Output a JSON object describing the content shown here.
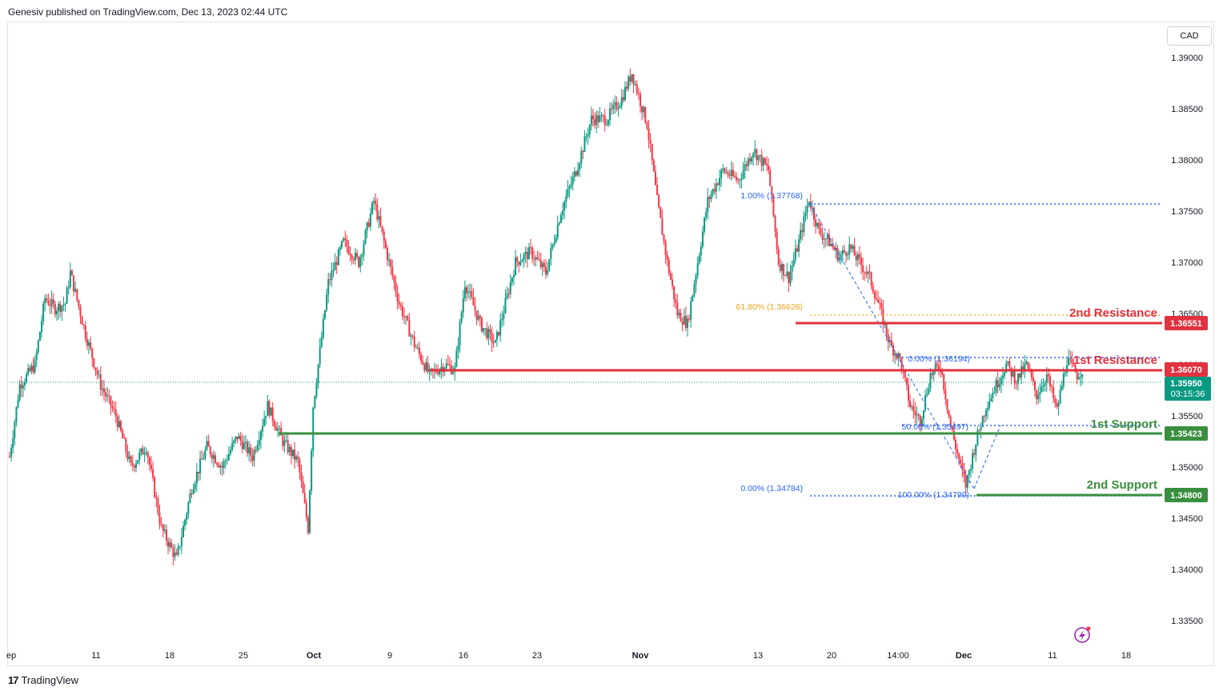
{
  "header": {
    "text": "Genesiv published on TradingView.com, Dec 13, 2023 02:44 UTC"
  },
  "currency_button": "CAD",
  "footer": {
    "logo": "17",
    "brand": "TradingView"
  },
  "colors": {
    "up": "#089981",
    "down": "#f23645",
    "resistance": "#e0323f",
    "support": "#3a8f3f",
    "fib": "#2962ff",
    "fib618": "#f0a21e"
  },
  "chart_data": {
    "type": "candlestick",
    "symbol_quote": "CAD",
    "y_ticks": [
      "1.39000",
      "1.38500",
      "1.38000",
      "1.37500",
      "1.37000",
      "1.36500",
      "1.36000",
      "1.35500",
      "1.35000",
      "1.34500",
      "1.34000",
      "1.33500"
    ],
    "ylim": [
      1.3325,
      1.3925
    ],
    "x_ticks": [
      "ep",
      "11",
      "18",
      "25",
      "Oct",
      "9",
      "16",
      "23",
      "Nov",
      "13",
      "20",
      "14:00",
      "Dec",
      "11",
      "18"
    ],
    "price_path": [
      [
        0,
        1.351
      ],
      [
        2,
        1.358
      ],
      [
        5,
        1.36
      ],
      [
        7,
        1.3665
      ],
      [
        9,
        1.3655
      ],
      [
        11,
        1.366
      ],
      [
        12,
        1.369
      ],
      [
        15,
        1.363
      ],
      [
        18,
        1.358
      ],
      [
        21,
        1.355
      ],
      [
        24,
        1.35
      ],
      [
        27,
        1.352
      ],
      [
        30,
        1.344
      ],
      [
        33,
        1.341
      ],
      [
        36,
        1.348
      ],
      [
        39,
        1.352
      ],
      [
        42,
        1.35
      ],
      [
        45,
        1.353
      ],
      [
        48,
        1.351
      ],
      [
        51,
        1.356
      ],
      [
        54,
        1.3525
      ],
      [
        57,
        1.3505
      ],
      [
        59,
        1.344
      ],
      [
        60,
        1.356
      ],
      [
        63,
        1.368
      ],
      [
        66,
        1.372
      ],
      [
        69,
        1.37
      ],
      [
        72,
        1.376
      ],
      [
        74,
        1.372
      ],
      [
        77,
        1.366
      ],
      [
        80,
        1.362
      ],
      [
        83,
        1.359
      ],
      [
        86,
        1.36
      ],
      [
        88,
        1.3595
      ],
      [
        90,
        1.368
      ],
      [
        93,
        1.364
      ],
      [
        96,
        1.362
      ],
      [
        98,
        1.366
      ],
      [
        100,
        1.37
      ],
      [
        103,
        1.371
      ],
      [
        106,
        1.369
      ],
      [
        109,
        1.375
      ],
      [
        112,
        1.379
      ],
      [
        115,
        1.384
      ],
      [
        118,
        1.384
      ],
      [
        121,
        1.386
      ],
      [
        123,
        1.3885
      ],
      [
        126,
        1.3835
      ],
      [
        128,
        1.376
      ],
      [
        130,
        1.37
      ],
      [
        132,
        1.365
      ],
      [
        134,
        1.364
      ],
      [
        136,
        1.37
      ],
      [
        138,
        1.376
      ],
      [
        141,
        1.379
      ],
      [
        144,
        1.378
      ],
      [
        147,
        1.381
      ],
      [
        150,
        1.379
      ],
      [
        152,
        1.37
      ],
      [
        154,
        1.3685
      ],
      [
        156,
        1.372
      ],
      [
        158,
        1.3762
      ],
      [
        160,
        1.373
      ],
      [
        162,
        1.372
      ],
      [
        164,
        1.3705
      ],
      [
        166,
        1.3715
      ],
      [
        168,
        1.37
      ],
      [
        170,
        1.3685
      ],
      [
        172,
        1.3655
      ],
      [
        174,
        1.362
      ],
      [
        176,
        1.3605
      ],
      [
        178,
        1.356
      ],
      [
        180,
        1.3545
      ],
      [
        182,
        1.359
      ],
      [
        184,
        1.36
      ],
      [
        186,
        1.354
      ],
      [
        188,
        1.35
      ],
      [
        189,
        1.3482
      ],
      [
        191,
        1.3525
      ],
      [
        193,
        1.356
      ],
      [
        195,
        1.358
      ],
      [
        197,
        1.36
      ],
      [
        199,
        1.3585
      ],
      [
        201,
        1.36
      ],
      [
        203,
        1.357
      ],
      [
        205,
        1.359
      ],
      [
        207,
        1.3555
      ],
      [
        209,
        1.3605
      ],
      [
        211,
        1.359
      ],
      [
        212,
        1.3595
      ]
    ],
    "levels": {
      "second_resistance": {
        "label": "2nd Resistance",
        "price": "1.36551"
      },
      "first_resistance": {
        "label": "1st Resistance",
        "price": "1.36070"
      },
      "first_support": {
        "label": "1st Support",
        "price": "1.35423"
      },
      "second_support": {
        "label": "2nd Support",
        "price": "1.34800"
      }
    },
    "last_price": {
      "price": "1.35950",
      "countdown": "03:15:36"
    },
    "fib_labels": {
      "top_100": "1.00% (1.37768)",
      "f618": "61.80% (1.36628)",
      "f0_upper": "0.00% (1.36194)",
      "f50": "50.00% (1.35497)",
      "f0_lower": "0.00% (1.34784)",
      "f100_lower": "100.00% (1.34799)"
    },
    "grid": false,
    "legend": "none"
  }
}
